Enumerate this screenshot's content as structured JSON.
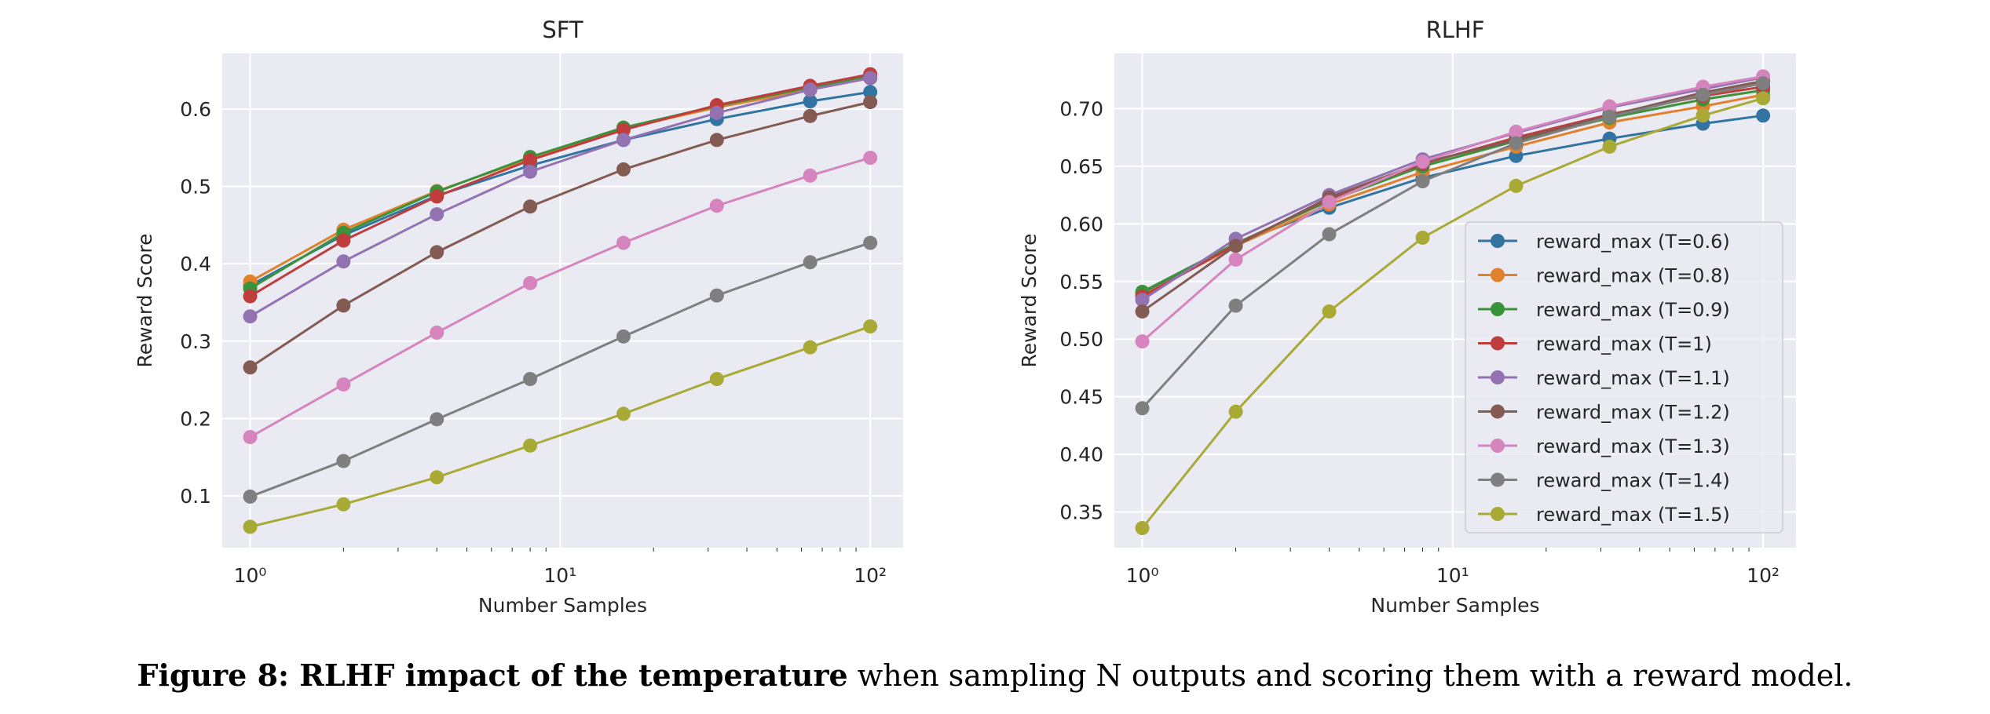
{
  "caption": {
    "bold": "Figure 8: RLHF impact of the temperature",
    "rest": " when sampling N outputs and scoring them with a reward model."
  },
  "colors": [
    "#3274a1",
    "#e1812c",
    "#3a923a",
    "#c03d3e",
    "#9372b2",
    "#845b53",
    "#d684bd",
    "#7f7f7f",
    "#a9aa35"
  ],
  "chart_data": [
    {
      "type": "line",
      "title": "SFT",
      "xlabel": "Number Samples",
      "ylabel": "Reward Score",
      "xscale": "log",
      "x": [
        1,
        2,
        4,
        8,
        16,
        32,
        64,
        100
      ],
      "xticks": [
        1,
        10,
        100
      ],
      "xtick_labels": [
        "10⁰",
        "10¹",
        "10²"
      ],
      "yticks": [
        0.1,
        0.2,
        0.3,
        0.4,
        0.5,
        0.6
      ],
      "ytick_labels": [
        "0.1",
        "0.2",
        "0.3",
        "0.4",
        "0.5",
        "0.6"
      ],
      "ylim": [
        0.033,
        0.672
      ],
      "grid": true,
      "legend": "none",
      "series": [
        {
          "name": "reward_max (T=0.6)",
          "values": [
            0.372,
            0.437,
            0.488,
            0.527,
            0.56,
            0.587,
            0.61,
            0.622
          ]
        },
        {
          "name": "reward_max (T=0.8)",
          "values": [
            0.377,
            0.444,
            0.494,
            0.536,
            0.575,
            0.602,
            0.625,
            0.64
          ]
        },
        {
          "name": "reward_max (T=0.9)",
          "values": [
            0.368,
            0.44,
            0.493,
            0.538,
            0.576,
            0.604,
            0.628,
            0.643
          ]
        },
        {
          "name": "reward_max (T=1)",
          "values": [
            0.358,
            0.43,
            0.487,
            0.534,
            0.573,
            0.605,
            0.63,
            0.645
          ]
        },
        {
          "name": "reward_max (T=1.1)",
          "values": [
            0.332,
            0.403,
            0.464,
            0.519,
            0.56,
            0.595,
            0.625,
            0.64
          ]
        },
        {
          "name": "reward_max (T=1.2)",
          "values": [
            0.266,
            0.346,
            0.415,
            0.474,
            0.522,
            0.56,
            0.591,
            0.609
          ]
        },
        {
          "name": "reward_max (T=1.3)",
          "values": [
            0.176,
            0.244,
            0.311,
            0.375,
            0.427,
            0.475,
            0.514,
            0.537
          ]
        },
        {
          "name": "reward_max (T=1.4)",
          "values": [
            0.099,
            0.145,
            0.199,
            0.251,
            0.306,
            0.359,
            0.402,
            0.427
          ]
        },
        {
          "name": "reward_max (T=1.5)",
          "values": [
            0.06,
            0.089,
            0.124,
            0.165,
            0.206,
            0.251,
            0.292,
            0.319
          ]
        }
      ]
    },
    {
      "type": "line",
      "title": "RLHF",
      "xlabel": "Number Samples",
      "ylabel": "Reward Score",
      "xscale": "log",
      "x": [
        1,
        2,
        4,
        8,
        16,
        32,
        64,
        100
      ],
      "xticks": [
        1,
        10,
        100
      ],
      "xtick_labels": [
        "10⁰",
        "10¹",
        "10²"
      ],
      "yticks": [
        0.35,
        0.4,
        0.45,
        0.5,
        0.55,
        0.6,
        0.65,
        0.7
      ],
      "ytick_labels": [
        "0.35",
        "0.40",
        "0.45",
        "0.50",
        "0.55",
        "0.60",
        "0.65",
        "0.70"
      ],
      "ylim": [
        0.319,
        0.748
      ],
      "grid": true,
      "legend": "lower-right",
      "series": [
        {
          "name": "reward_max (T=0.6)",
          "values": [
            0.54,
            0.583,
            0.614,
            0.64,
            0.659,
            0.674,
            0.687,
            0.694
          ]
        },
        {
          "name": "reward_max (T=0.8)",
          "values": [
            0.538,
            0.581,
            0.617,
            0.645,
            0.667,
            0.688,
            0.702,
            0.712
          ]
        },
        {
          "name": "reward_max (T=0.9)",
          "values": [
            0.541,
            0.583,
            0.62,
            0.65,
            0.672,
            0.692,
            0.708,
            0.716
          ]
        },
        {
          "name": "reward_max (T=1)",
          "values": [
            0.537,
            0.582,
            0.622,
            0.652,
            0.675,
            0.695,
            0.711,
            0.719
          ]
        },
        {
          "name": "reward_max (T=1.1)",
          "values": [
            0.534,
            0.587,
            0.625,
            0.656,
            0.679,
            0.701,
            0.717,
            0.727
          ]
        },
        {
          "name": "reward_max (T=1.2)",
          "values": [
            0.524,
            0.581,
            0.623,
            0.653,
            0.673,
            0.694,
            0.714,
            0.724
          ]
        },
        {
          "name": "reward_max (T=1.3)",
          "values": [
            0.498,
            0.569,
            0.619,
            0.654,
            0.68,
            0.702,
            0.719,
            0.728
          ]
        },
        {
          "name": "reward_max (T=1.4)",
          "values": [
            0.44,
            0.529,
            0.591,
            0.637,
            0.67,
            0.693,
            0.712,
            0.722
          ]
        },
        {
          "name": "reward_max (T=1.5)",
          "values": [
            0.336,
            0.437,
            0.524,
            0.588,
            0.633,
            0.667,
            0.694,
            0.709
          ]
        }
      ]
    }
  ]
}
